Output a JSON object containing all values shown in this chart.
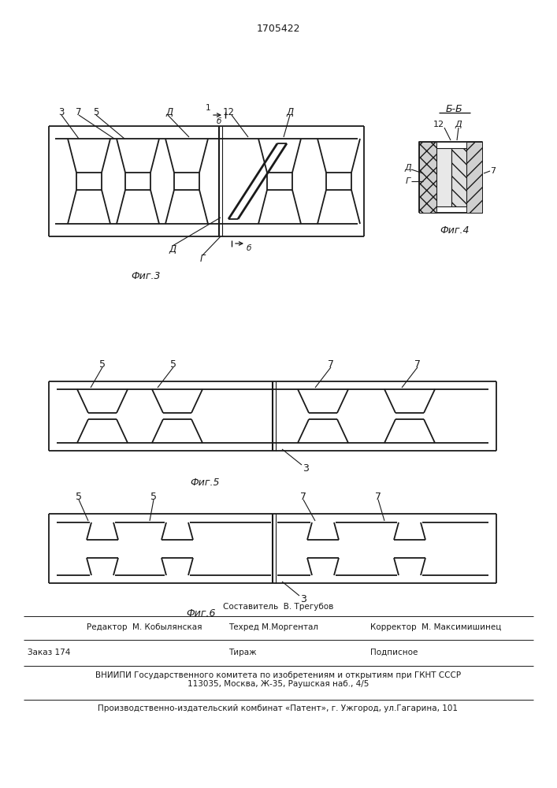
{
  "patent_number": "1705422",
  "background_color": "#ffffff",
  "line_color": "#1a1a1a",
  "fig3_label": "Фиг.3",
  "fig4_label": "Фиг.4",
  "fig5_label": "Фиг.5",
  "fig6_label": "Фиг.6",
  "bb_label": "Б-Б",
  "footer_line1_mid": "Составитель  В. Трегубов",
  "footer_line2_left": "Редактор  М. Кобылянская",
  "footer_line2_mid": "Техред М.Моргентал",
  "footer_line2_right": "Корректор  М. Максимишинец",
  "footer_line3_left": "Заказ 174",
  "footer_line3_mid": "Тираж",
  "footer_line3_right": "Подписное",
  "footer_line4": "ВНИИПИ Государственного комитета по изобретениям и открытиям при ГКНТ СССР",
  "footer_line5": "113035, Москва, Ж-35, Раушская наб., 4/5",
  "footer_line6": "Производственно-издательский комбинат «Патент», г. Ужгород, ул.Гагарина, 101"
}
